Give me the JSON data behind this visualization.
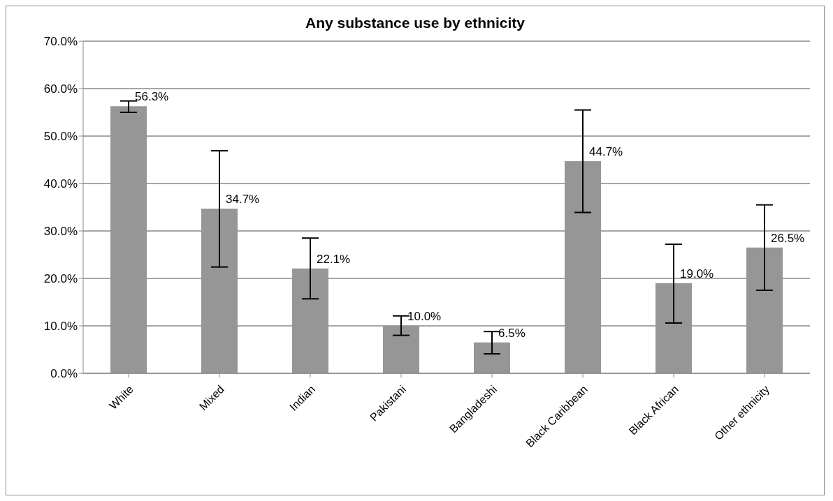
{
  "chart_data": {
    "type": "bar",
    "title": "Any substance use by ethnicity",
    "categories": [
      "White",
      "Mixed",
      "Indian",
      "Pakistani",
      "Bangladeshi",
      "Black Caribbean",
      "Black African",
      "Other ethnicity"
    ],
    "values": [
      56.3,
      34.7,
      22.1,
      10.0,
      6.5,
      44.7,
      19.0,
      26.5
    ],
    "color": "#969696",
    "errors": [
      [
        55.0,
        57.4
      ],
      [
        22.4,
        46.9
      ],
      [
        15.7,
        28.5
      ],
      [
        8.0,
        12.1
      ],
      [
        4.1,
        8.8
      ],
      [
        33.9,
        55.5
      ],
      [
        10.6,
        27.2
      ],
      [
        17.5,
        35.5
      ]
    ],
    "value_labels": [
      "56.3%",
      "34.7%",
      "22.1%",
      "10.0%",
      "6.5%",
      "44.7%",
      "19.0%",
      "26.5%"
    ],
    "ylim": [
      0,
      70
    ],
    "yticks": [
      {
        "value": 0,
        "label": "0.0%"
      },
      {
        "value": 10,
        "label": "10.0%"
      },
      {
        "value": 20,
        "label": "20.0%"
      },
      {
        "value": 30,
        "label": "30.0%"
      },
      {
        "value": 40,
        "label": "40.0%"
      },
      {
        "value": 50,
        "label": "50.0%"
      },
      {
        "value": 60,
        "label": "60.0%"
      },
      {
        "value": 70,
        "label": "70.0%"
      }
    ],
    "grid": "y",
    "legend": false
  }
}
